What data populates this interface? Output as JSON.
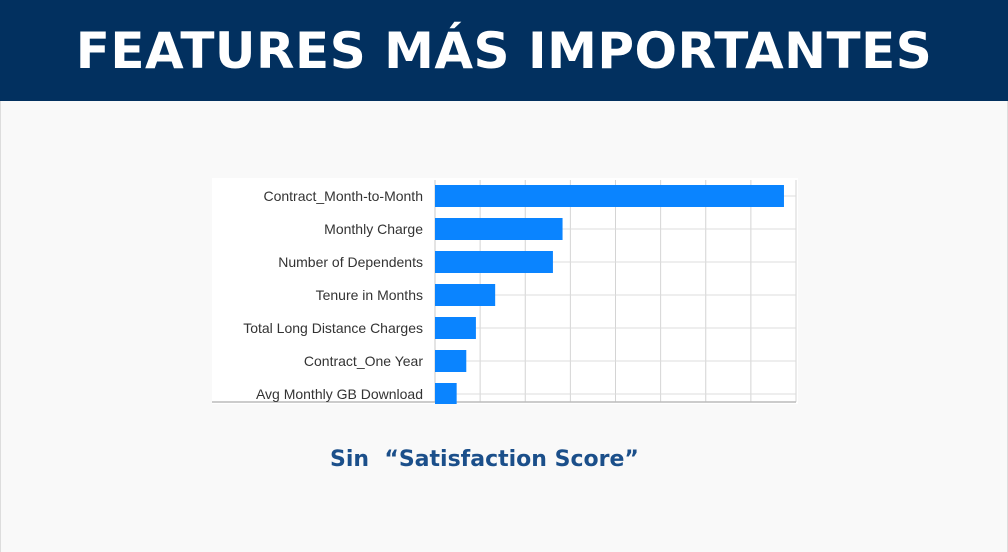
{
  "header": {
    "title": "FEATURES MÁS IMPORTANTES"
  },
  "caption": "Sin  “Satisfaction Score”",
  "colors": {
    "banner": "#02305f",
    "bar": "#0a84ff",
    "caption": "#1b4f8a"
  },
  "chart_data": {
    "type": "bar",
    "orientation": "horizontal",
    "categories": [
      "Contract_Month-to-Month",
      "Monthly Charge",
      "Number of Dependents",
      "Tenure in Months",
      "Total Long Distance Charges",
      "Contract_One Year",
      "Avg Monthly GB Download"
    ],
    "values": [
      0.145,
      0.053,
      0.049,
      0.025,
      0.017,
      0.013,
      0.009
    ],
    "xlim": [
      0,
      0.15
    ],
    "grid": true,
    "legend": "none"
  }
}
